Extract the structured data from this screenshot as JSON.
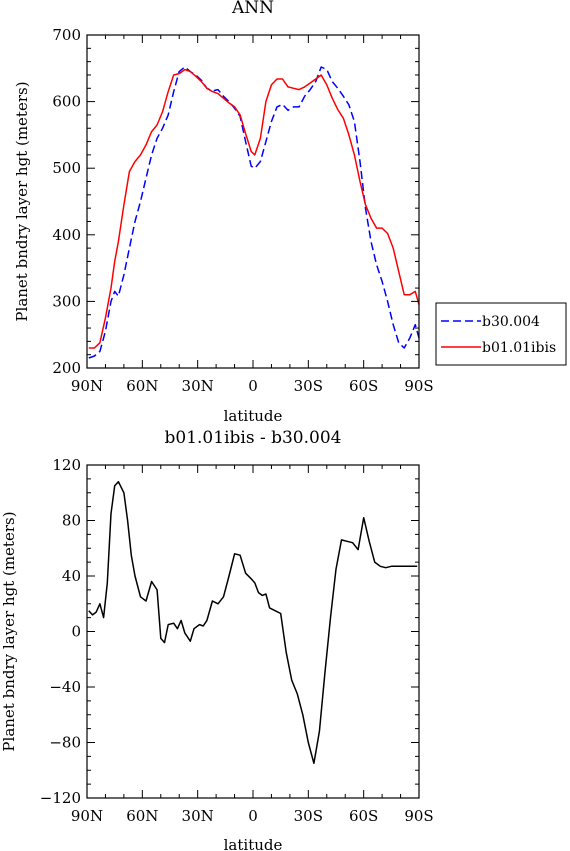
{
  "chart_data": [
    {
      "type": "line",
      "title": "ANN",
      "xlabel": "latitude",
      "ylabel": "Planet bndry layer hgt (meters)",
      "xlim": [
        -90,
        90
      ],
      "ylim": [
        200,
        700
      ],
      "x_ticks": [
        {
          "value": -90,
          "label": "90N"
        },
        {
          "value": -60,
          "label": "60N"
        },
        {
          "value": -30,
          "label": "30N"
        },
        {
          "value": 0,
          "label": "0"
        },
        {
          "value": 30,
          "label": "30S"
        },
        {
          "value": 60,
          "label": "60S"
        },
        {
          "value": 90,
          "label": "90S"
        }
      ],
      "y_ticks": [
        200,
        300,
        400,
        500,
        600,
        700
      ],
      "legend_position": "right",
      "series": [
        {
          "name": "b30.004",
          "color": "#0000ff",
          "dash": "dashed",
          "x": [
            -89,
            -86,
            -83,
            -80,
            -77,
            -75,
            -73,
            -70,
            -67,
            -64,
            -61,
            -58,
            -55,
            -52,
            -49,
            -46,
            -43,
            -40,
            -37,
            -34,
            -31,
            -28,
            -25,
            -22,
            -19,
            -16,
            -13,
            -10,
            -7,
            -4,
            -1,
            1,
            4,
            7,
            10,
            13,
            16,
            19,
            22,
            25,
            28,
            31,
            34,
            37,
            40,
            43,
            46,
            49,
            52,
            55,
            58,
            61,
            64,
            67,
            70,
            73,
            76,
            79,
            82,
            85,
            88,
            90
          ],
          "y": [
            215,
            218,
            225,
            255,
            300,
            315,
            308,
            340,
            380,
            420,
            450,
            485,
            520,
            545,
            560,
            580,
            615,
            645,
            652,
            645,
            640,
            632,
            620,
            616,
            618,
            608,
            600,
            590,
            578,
            540,
            503,
            500,
            510,
            540,
            570,
            592,
            596,
            587,
            592,
            592,
            608,
            618,
            630,
            652,
            648,
            630,
            620,
            608,
            595,
            570,
            510,
            440,
            390,
            355,
            330,
            300,
            265,
            238,
            230,
            245,
            265,
            245
          ]
        },
        {
          "name": "b01.01ibis",
          "color": "#ff0000",
          "dash": "solid",
          "x": [
            -89,
            -86,
            -83,
            -80,
            -77,
            -75,
            -73,
            -70,
            -67,
            -64,
            -61,
            -58,
            -55,
            -52,
            -49,
            -46,
            -43,
            -40,
            -37,
            -34,
            -31,
            -28,
            -25,
            -22,
            -19,
            -16,
            -13,
            -10,
            -7,
            -4,
            -1,
            1,
            4,
            7,
            10,
            13,
            16,
            19,
            22,
            25,
            28,
            31,
            34,
            37,
            40,
            43,
            46,
            49,
            52,
            55,
            58,
            61,
            64,
            67,
            70,
            73,
            76,
            79,
            82,
            85,
            88,
            90
          ],
          "y": [
            230,
            230,
            238,
            275,
            320,
            360,
            390,
            445,
            495,
            510,
            520,
            535,
            555,
            565,
            585,
            615,
            640,
            642,
            648,
            645,
            638,
            630,
            620,
            615,
            612,
            605,
            598,
            592,
            580,
            552,
            525,
            520,
            545,
            600,
            625,
            634,
            634,
            622,
            620,
            618,
            622,
            628,
            634,
            640,
            625,
            605,
            588,
            575,
            550,
            520,
            480,
            445,
            425,
            410,
            410,
            402,
            380,
            345,
            310,
            310,
            315,
            295
          ]
        }
      ]
    },
    {
      "type": "line",
      "title": "b01.01ibis - b30.004",
      "xlabel": "latitude",
      "ylabel": "Planet bndry layer hgt (meters)",
      "xlim": [
        -90,
        90
      ],
      "ylim": [
        -120,
        120
      ],
      "x_ticks": [
        {
          "value": -90,
          "label": "90N"
        },
        {
          "value": -60,
          "label": "60N"
        },
        {
          "value": -30,
          "label": "30N"
        },
        {
          "value": 0,
          "label": "0"
        },
        {
          "value": 30,
          "label": "30S"
        },
        {
          "value": 60,
          "label": "60S"
        },
        {
          "value": 90,
          "label": "90S"
        }
      ],
      "y_ticks": [
        -120,
        -80,
        -40,
        0,
        40,
        80,
        120
      ],
      "series": [
        {
          "color": "#000000",
          "dash": "solid",
          "x": [
            -89,
            -87,
            -85,
            -83,
            -81,
            -79,
            -77,
            -75,
            -73,
            -70,
            -68,
            -66,
            -64,
            -61,
            -58,
            -55,
            -52,
            -50,
            -48,
            -46,
            -43,
            -41,
            -39,
            -37,
            -34,
            -32,
            -29,
            -27,
            -25,
            -22,
            -19,
            -16,
            -13,
            -10,
            -7,
            -4,
            -1,
            1,
            3,
            5,
            7,
            9,
            12,
            15,
            18,
            21,
            24,
            27,
            30,
            33,
            36,
            39,
            42,
            45,
            48,
            51,
            54,
            57,
            60,
            63,
            66,
            69,
            72,
            75,
            78,
            81,
            84,
            87,
            89
          ],
          "y": [
            15,
            12,
            14,
            20,
            10,
            35,
            85,
            105,
            108,
            100,
            80,
            55,
            40,
            25,
            22,
            36,
            30,
            -5,
            -8,
            5,
            6,
            2,
            8,
            -1,
            -7,
            2,
            5,
            4,
            8,
            22,
            20,
            25,
            40,
            56,
            55,
            42,
            38,
            35,
            28,
            26,
            27,
            17,
            15,
            13,
            -15,
            -35,
            -45,
            -60,
            -80,
            -95,
            -72,
            -30,
            10,
            45,
            66,
            65,
            64,
            59,
            82,
            65,
            50,
            47,
            46,
            47,
            47,
            47,
            47,
            47,
            47
          ]
        }
      ]
    }
  ]
}
